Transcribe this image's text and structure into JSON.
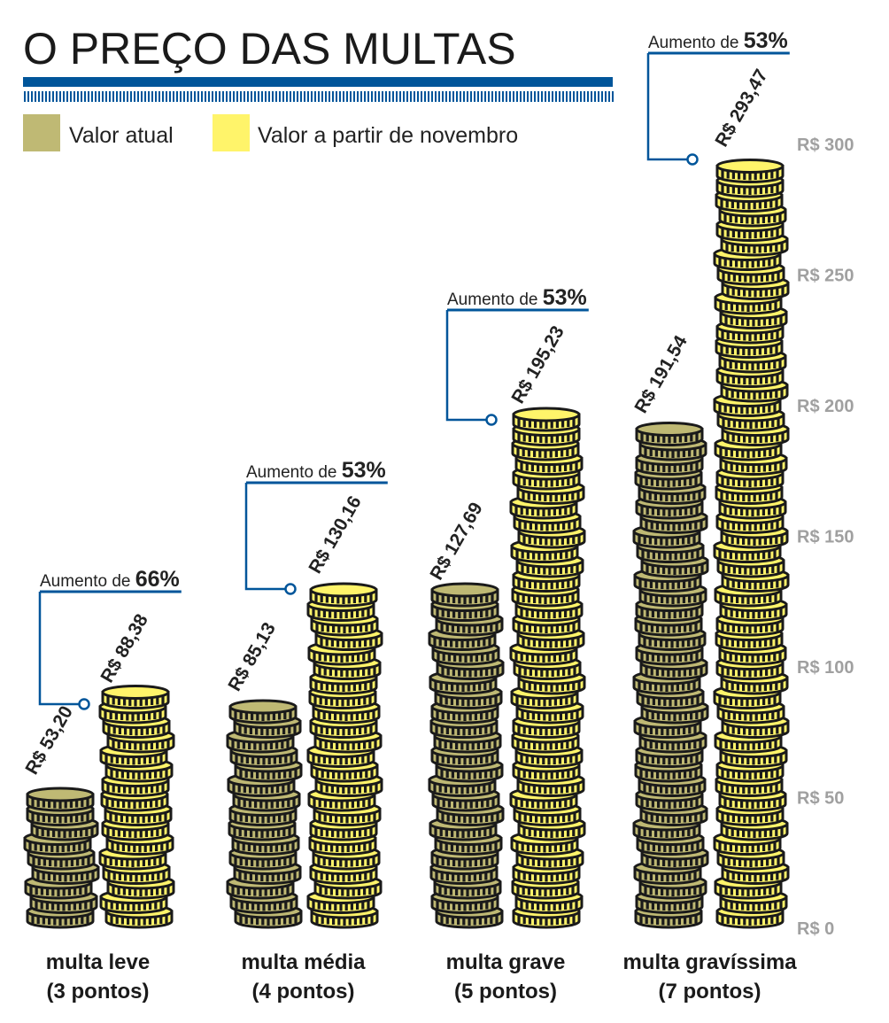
{
  "title": "O PREÇO DAS MULTAS",
  "colors": {
    "atual": "#bfb974",
    "novo": "#fff46a",
    "accent": "#00559a",
    "outline": "#1a1a1a",
    "tick": "#a0a0a0"
  },
  "chart_data": {
    "type": "bar",
    "title": "O PREÇO DAS MULTAS",
    "categories": [
      "multa leve",
      "multa média",
      "multa grave",
      "multa gravíssima"
    ],
    "category_sublabels": [
      "(3 pontos)",
      "(4 pontos)",
      "(5 pontos)",
      "(7 pontos)"
    ],
    "series": [
      {
        "name": "Valor atual",
        "values": [
          53.2,
          85.13,
          127.69,
          191.54
        ],
        "labels": [
          "R$ 53,20",
          "R$ 85,13",
          "R$ 127,69",
          "R$ 191,54"
        ]
      },
      {
        "name": "Valor a partir de novembro",
        "values": [
          88.38,
          130.16,
          195.23,
          293.47
        ],
        "labels": [
          "R$ 88,38",
          "R$ 130,16",
          "R$ 195,23",
          "R$ 293,47"
        ]
      }
    ],
    "annotations": [
      {
        "prefix": "Aumento de ",
        "value": "66%"
      },
      {
        "prefix": "Aumento de ",
        "value": "53%"
      },
      {
        "prefix": "Aumento de ",
        "value": "53%"
      },
      {
        "prefix": "Aumento de ",
        "value": "53%"
      }
    ],
    "yticks": [
      "R$ 0",
      "R$ 50",
      "R$ 100",
      "R$ 150",
      "R$ 200",
      "R$ 250",
      "R$ 300"
    ],
    "ytick_values": [
      0,
      50,
      100,
      150,
      200,
      250,
      300
    ],
    "ylim": [
      0,
      300
    ],
    "legend": "top-left",
    "grid": false
  }
}
